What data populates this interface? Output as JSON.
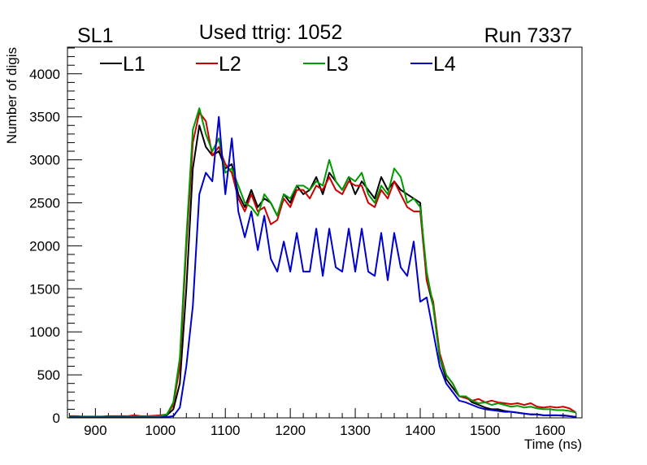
{
  "chart_data": {
    "type": "line",
    "title": "Used ttrig: 1052",
    "left_label": "SL1",
    "right_label": "Run 7337",
    "xlabel": "Time (ns)",
    "ylabel": "Number of digis",
    "xlim": [
      857,
      1649
    ],
    "ylim": [
      0,
      4310
    ],
    "xticks": [
      900,
      1000,
      1100,
      1200,
      1300,
      1400,
      1500,
      1600
    ],
    "xtick_labels": [
      "900",
      "1000",
      "1100",
      "1200",
      "1300",
      "1400",
      "1500",
      "1600"
    ],
    "yticks": [
      0,
      500,
      1000,
      1500,
      2000,
      2500,
      3000,
      3500,
      4000
    ],
    "ytick_labels": [
      "0",
      "500",
      "1000",
      "1500",
      "2000",
      "2500",
      "3000",
      "3500",
      "4000"
    ],
    "legend_placement": "top",
    "x": [
      860,
      870,
      880,
      890,
      900,
      910,
      920,
      930,
      940,
      950,
      960,
      970,
      980,
      990,
      1000,
      1010,
      1020,
      1030,
      1040,
      1050,
      1060,
      1070,
      1080,
      1090,
      1100,
      1110,
      1120,
      1130,
      1140,
      1150,
      1160,
      1170,
      1180,
      1190,
      1200,
      1210,
      1220,
      1230,
      1240,
      1250,
      1260,
      1270,
      1280,
      1290,
      1300,
      1310,
      1320,
      1330,
      1340,
      1350,
      1360,
      1370,
      1380,
      1390,
      1400,
      1410,
      1420,
      1430,
      1440,
      1450,
      1460,
      1470,
      1480,
      1490,
      1500,
      1510,
      1520,
      1530,
      1540,
      1550,
      1560,
      1570,
      1580,
      1590,
      1600,
      1610,
      1620,
      1630,
      1640
    ],
    "series": [
      {
        "name": "L1",
        "color": "#000000",
        "values": [
          10,
          10,
          10,
          10,
          10,
          10,
          10,
          10,
          10,
          15,
          15,
          15,
          15,
          20,
          20,
          30,
          100,
          400,
          1500,
          2900,
          3400,
          3150,
          3050,
          3100,
          2900,
          2950,
          2600,
          2450,
          2650,
          2450,
          2550,
          2500,
          2350,
          2600,
          2500,
          2700,
          2600,
          2650,
          2800,
          2600,
          2850,
          2750,
          2650,
          2800,
          2600,
          2750,
          2650,
          2550,
          2800,
          2650,
          2750,
          2650,
          2600,
          2550,
          2500,
          1600,
          1300,
          700,
          450,
          350,
          250,
          250,
          180,
          150,
          120,
          100,
          100,
          80,
          70,
          60,
          50,
          40,
          40,
          30,
          30,
          30,
          30,
          20,
          10
        ]
      },
      {
        "name": "L2",
        "color": "#cc0000",
        "values": [
          20,
          20,
          15,
          15,
          15,
          15,
          20,
          20,
          20,
          20,
          30,
          20,
          20,
          25,
          30,
          40,
          150,
          600,
          2000,
          3200,
          3550,
          3450,
          3050,
          3150,
          2950,
          2850,
          2550,
          2400,
          2600,
          2400,
          2450,
          2250,
          2300,
          2550,
          2450,
          2650,
          2650,
          2550,
          2700,
          2650,
          2800,
          2650,
          2600,
          2750,
          2700,
          2700,
          2500,
          2450,
          2650,
          2550,
          2750,
          2600,
          2450,
          2400,
          2400,
          1600,
          1350,
          750,
          500,
          400,
          250,
          230,
          200,
          220,
          180,
          200,
          180,
          170,
          160,
          170,
          150,
          170,
          130,
          120,
          130,
          120,
          130,
          110,
          60
        ]
      },
      {
        "name": "L3",
        "color": "#009900",
        "values": [
          10,
          10,
          10,
          10,
          10,
          10,
          10,
          10,
          10,
          15,
          15,
          15,
          15,
          20,
          20,
          40,
          180,
          700,
          2100,
          3350,
          3600,
          3300,
          3100,
          3250,
          2850,
          2900,
          2700,
          2500,
          2450,
          2350,
          2600,
          2500,
          2350,
          2600,
          2550,
          2700,
          2700,
          2650,
          2750,
          2700,
          3000,
          2750,
          2650,
          2800,
          2750,
          2850,
          2600,
          2500,
          2700,
          2600,
          2900,
          2800,
          2500,
          2550,
          2450,
          1700,
          1300,
          700,
          500,
          400,
          250,
          250,
          200,
          170,
          180,
          150,
          170,
          150,
          130,
          140,
          120,
          130,
          110,
          100,
          100,
          90,
          90,
          80,
          60
        ]
      },
      {
        "name": "L4",
        "color": "#0000cc",
        "values": [
          5,
          5,
          5,
          5,
          5,
          5,
          5,
          5,
          5,
          5,
          5,
          5,
          5,
          5,
          5,
          10,
          20,
          120,
          600,
          1300,
          2600,
          2850,
          2750,
          3500,
          2600,
          3250,
          2400,
          2100,
          2400,
          1950,
          2350,
          1850,
          1700,
          2050,
          1700,
          2150,
          1700,
          1700,
          2200,
          1650,
          2200,
          1750,
          1700,
          2200,
          1700,
          2200,
          1700,
          1650,
          2150,
          1600,
          2150,
          1750,
          1650,
          2050,
          1350,
          1400,
          1000,
          600,
          400,
          300,
          200,
          180,
          150,
          120,
          100,
          90,
          80,
          70,
          70,
          60,
          50,
          40,
          40,
          30,
          30,
          30,
          25,
          20,
          10
        ]
      }
    ]
  }
}
